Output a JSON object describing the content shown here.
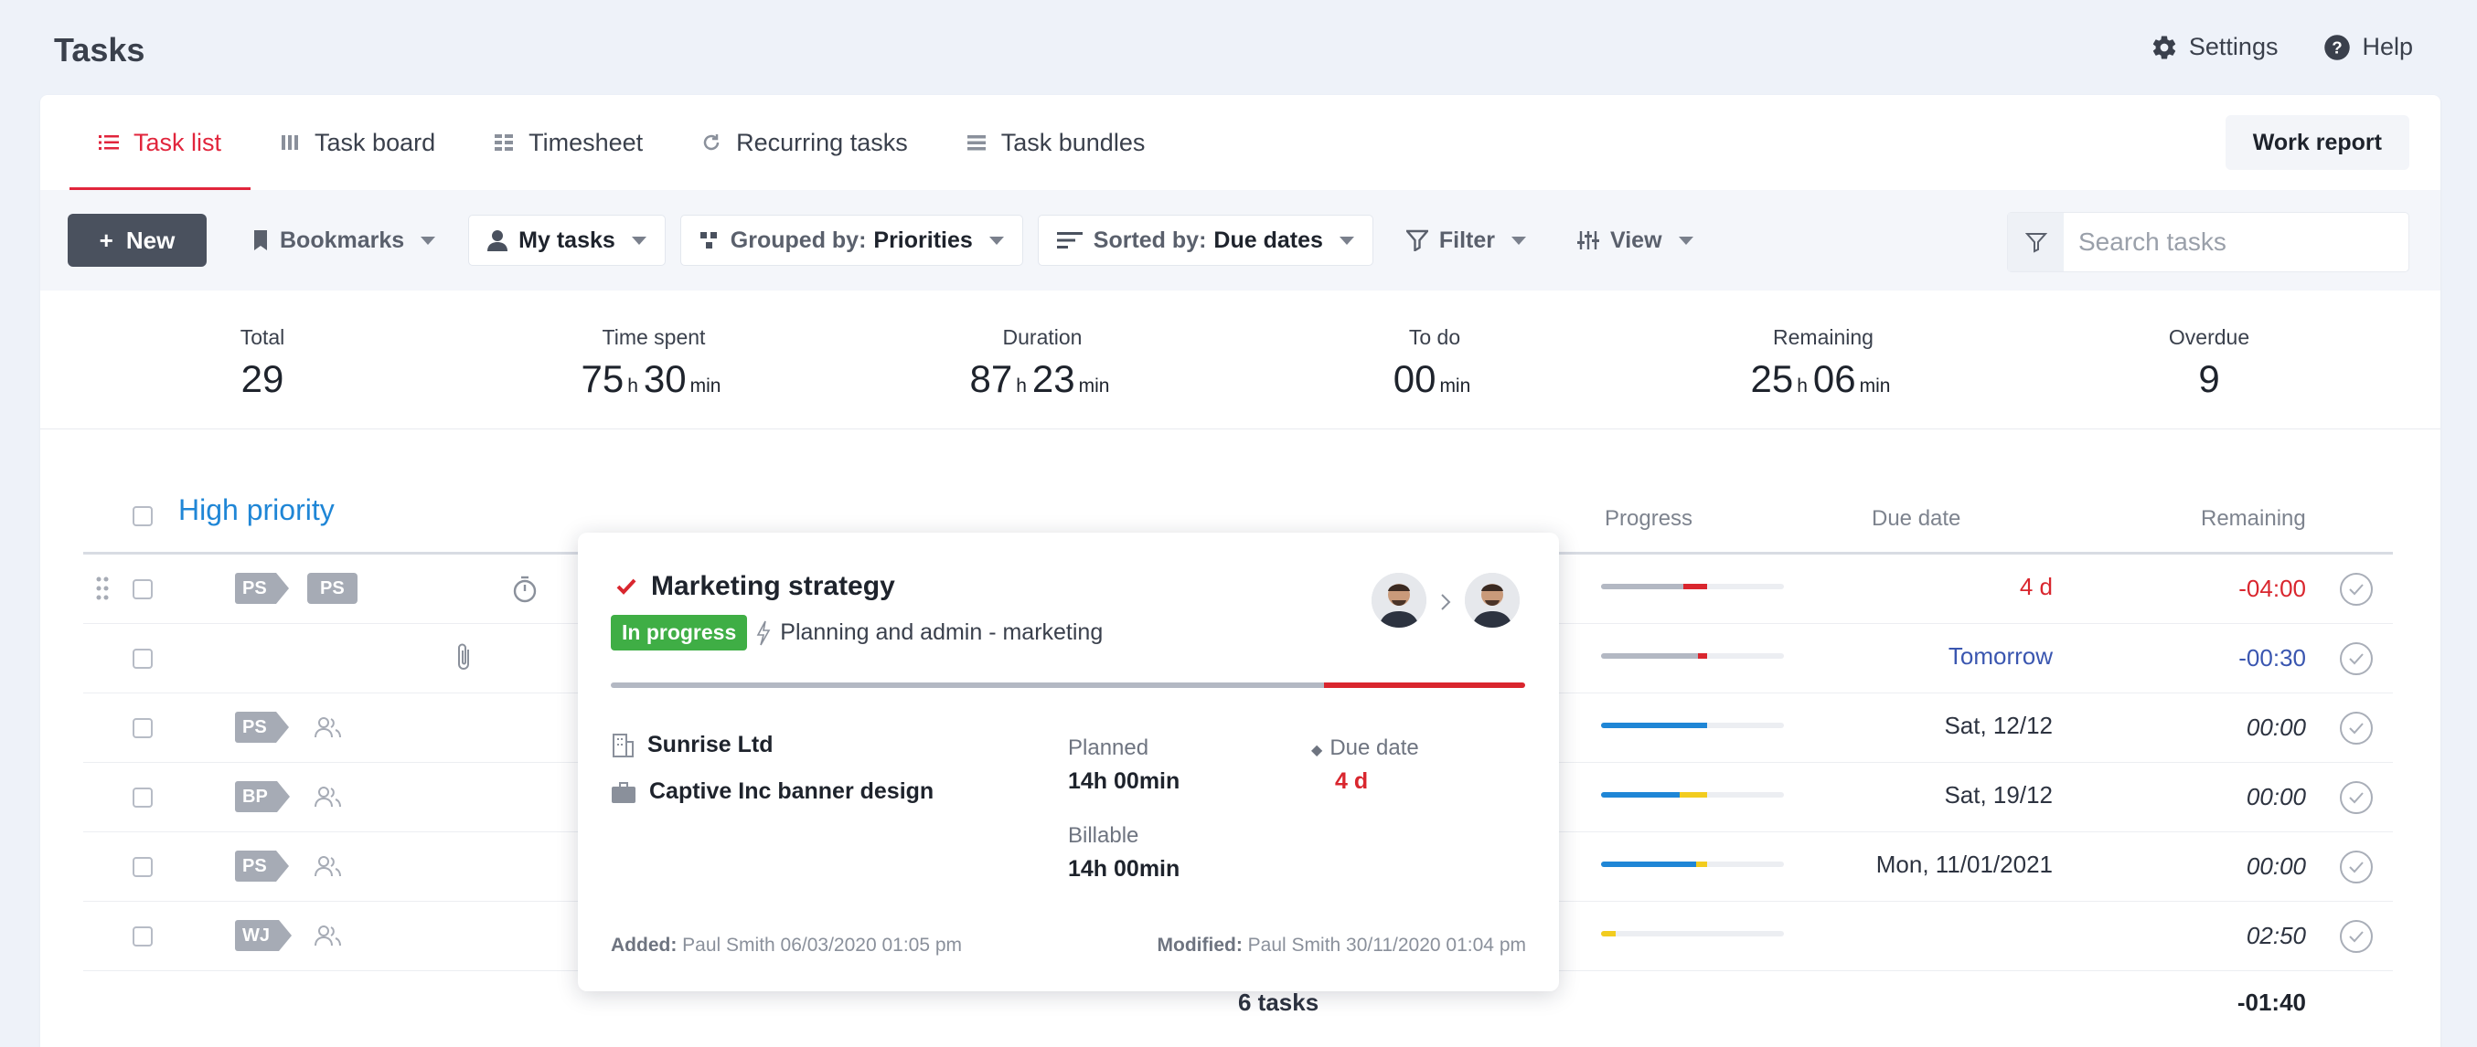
{
  "header": {
    "title": "Tasks",
    "settings_label": "Settings",
    "help_label": "Help"
  },
  "tabs": [
    {
      "label": "Task list",
      "icon": "list-icon",
      "active": true
    },
    {
      "label": "Task board",
      "icon": "board-icon"
    },
    {
      "label": "Timesheet",
      "icon": "grid-icon"
    },
    {
      "label": "Recurring tasks",
      "icon": "refresh-icon"
    },
    {
      "label": "Task bundles",
      "icon": "stack-icon"
    }
  ],
  "work_report_label": "Work report",
  "toolbar": {
    "new_label": "New",
    "bookmarks_label": "Bookmarks",
    "my_tasks_label": "My tasks",
    "grouped_prefix": "Grouped by:",
    "grouped_value": "Priorities",
    "sorted_prefix": "Sorted by:",
    "sorted_value": "Due dates",
    "filter_label": "Filter",
    "view_label": "View",
    "search_placeholder": "Search tasks"
  },
  "stats": {
    "total": {
      "label": "Total",
      "value": "29"
    },
    "time_spent": {
      "label": "Time spent",
      "h": "75",
      "min": "30"
    },
    "duration": {
      "label": "Duration",
      "h": "87",
      "min": "23"
    },
    "to_do": {
      "label": "To do",
      "min": "00"
    },
    "remaining": {
      "label": "Remaining",
      "h": "25",
      "min": "06"
    },
    "overdue": {
      "label": "Overdue",
      "value": "9"
    },
    "unit_h": "h",
    "unit_min": "min"
  },
  "group": {
    "title": "High priority",
    "col_progress": "Progress",
    "col_due": "Due date",
    "col_remaining": "Remaining"
  },
  "rows": [
    {
      "tag": "PS",
      "tag2": "PS",
      "due": "4 d",
      "remaining": "-04:00",
      "progress": [
        {
          "pct": 45,
          "color": "#b3b8c3"
        },
        {
          "pct": 13,
          "color": "#d9262e"
        }
      ]
    },
    {
      "tag": "",
      "due": "Tomorrow",
      "remaining": "-00:30",
      "progress": [
        {
          "pct": 53,
          "color": "#b3b8c3"
        },
        {
          "pct": 5,
          "color": "#d9262e"
        }
      ]
    },
    {
      "tag": "PS",
      "due": "Sat, 12/12",
      "remaining": "00:00",
      "progress": [
        {
          "pct": 58,
          "color": "#1f86d6"
        }
      ]
    },
    {
      "tag": "BP",
      "due": "Sat, 19/12",
      "remaining": "00:00",
      "progress": [
        {
          "pct": 43,
          "color": "#1f86d6"
        },
        {
          "pct": 15,
          "color": "#f2cc1f"
        }
      ]
    },
    {
      "tag": "PS",
      "due": "Mon, 11/01/2021",
      "remaining": "00:00",
      "progress": [
        {
          "pct": 52,
          "color": "#1f86d6"
        },
        {
          "pct": 6,
          "color": "#f2cc1f"
        }
      ]
    },
    {
      "tag": "WJ",
      "due": "",
      "remaining": "02:50",
      "progress": [
        {
          "pct": 8,
          "color": "#f2cc1f"
        }
      ]
    }
  ],
  "footer": {
    "count": "6 tasks",
    "total_remaining": "-01:40"
  },
  "popup": {
    "title": "Marketing strategy",
    "status": "In progress",
    "project": "Planning and admin - marketing",
    "client": "Sunrise Ltd",
    "deal": "Captive Inc banner design",
    "planned_label": "Planned",
    "planned_value": "14h 00min",
    "billable_label": "Billable",
    "billable_value": "14h 00min",
    "due_label": "Due date",
    "due_value": "4 d",
    "added_label": "Added:",
    "added_value": "Paul Smith 06/03/2020 01:05 pm",
    "modified_label": "Modified:",
    "modified_value": "Paul Smith 30/11/2020 01:04 pm",
    "progress": [
      {
        "pct": 78,
        "color": "#b3b8c3"
      },
      {
        "pct": 22,
        "color": "#d9262e"
      }
    ]
  },
  "colors": {
    "accent_red": "#e1253c",
    "link_blue": "#1f86d6",
    "overdue_red": "#d9262e",
    "tomorrow_blue": "#3a56b0",
    "status_green": "#3fae45"
  }
}
